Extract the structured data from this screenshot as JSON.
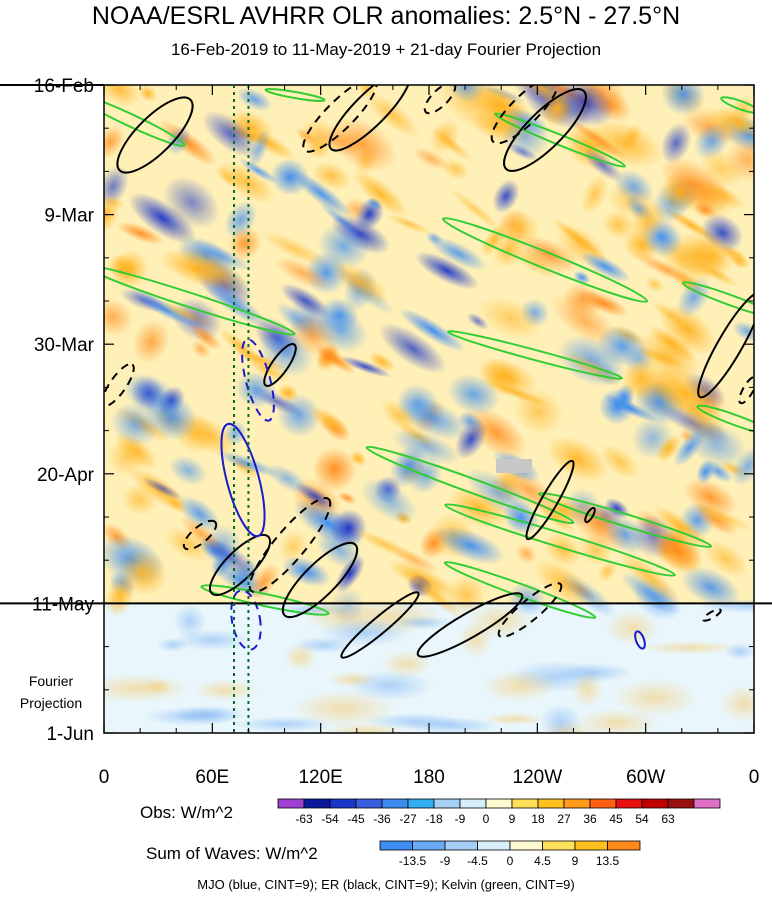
{
  "title": "NOAA/ESRL AVHRR OLR anomalies: 2.5°N - 27.5°N",
  "subtitle": "16-Feb-2019 to 11-May-2019 + 21-day Fourier Projection",
  "projection_label_1": "Fourier",
  "projection_label_2": "Projection",
  "footnote": "MJO (blue, CINT=9); ER (black, CINT=9); Kelvin (green, CINT=9)",
  "colors": {
    "mjo": "#1a1acc",
    "er": "#000000",
    "kelvin": "#33cc33",
    "dotted_lines": "#0a6b2a"
  },
  "chart_data": {
    "type": "heatmap",
    "x_axis": {
      "ticks": [
        "0",
        "60E",
        "120E",
        "180",
        "120W",
        "60W",
        "0"
      ],
      "range_deg_east": [
        0,
        360
      ]
    },
    "y_axis": {
      "ticks": [
        "16-Feb",
        "9-Mar",
        "30-Mar",
        "20-Apr",
        "11-May",
        "1-Jun"
      ],
      "range": [
        "2019-02-16",
        "2019-06-01"
      ],
      "observation_end": "2019-05-11"
    },
    "reference_lines_lon_deg_east": [
      72,
      80
    ],
    "obs_colorbar": {
      "label": "Obs: W/m^2",
      "ticks": [
        "-63",
        "-54",
        "-45",
        "-36",
        "-27",
        "-18",
        "-9",
        "0",
        "9",
        "18",
        "27",
        "36",
        "45",
        "54",
        "63"
      ],
      "colors": [
        "#a040d0",
        "#0a1a9a",
        "#1a35c8",
        "#3a5ee0",
        "#3d8cf0",
        "#30b0f0",
        "#a6d0f5",
        "#d6eefa",
        "#fffbd0",
        "#ffe05a",
        "#ffc01e",
        "#ff9a1a",
        "#ff6010",
        "#e81010",
        "#c00000",
        "#9a1010",
        "#e070c8"
      ]
    },
    "waves_colorbar": {
      "label": "Sum of Waves: W/m^2",
      "ticks": [
        "-13.5",
        "-9",
        "-4.5",
        "0",
        "4.5",
        "9",
        "13.5"
      ],
      "colors": [
        "#3d8cf0",
        "#6aaaf5",
        "#a6cdf5",
        "#d6eefa",
        "#fffbd0",
        "#ffe05a",
        "#ffbf1e",
        "#ff8a1a"
      ]
    },
    "series": [
      {
        "name": "MJO",
        "color": "#1a1acc"
      },
      {
        "name": "ER",
        "color": "#000000"
      },
      {
        "name": "Kelvin",
        "color": "#33cc33"
      }
    ]
  }
}
